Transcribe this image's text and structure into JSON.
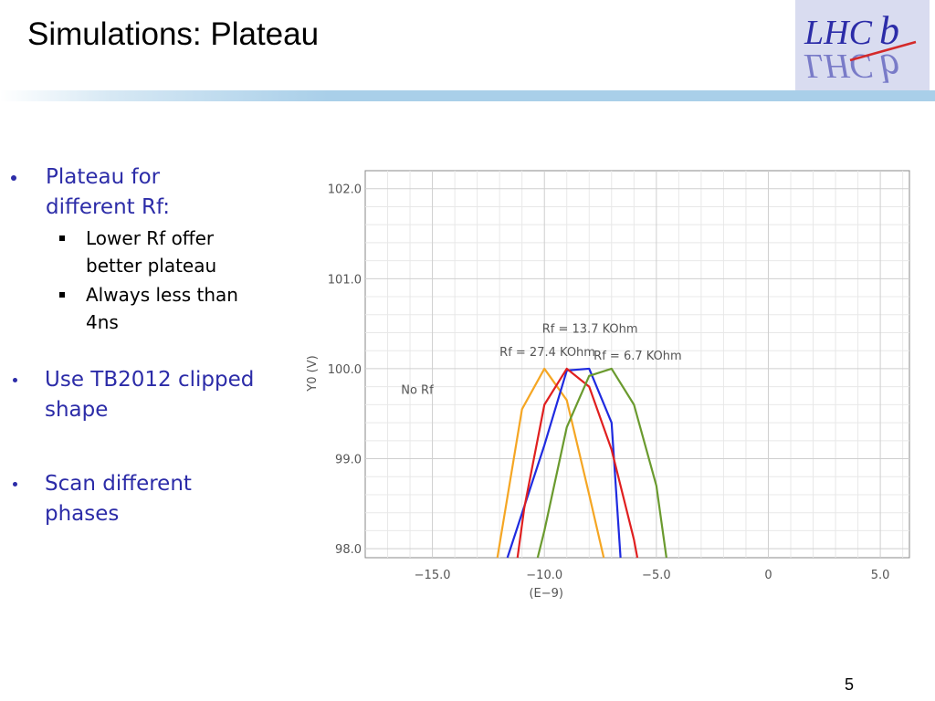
{
  "slide": {
    "title": "Simulations: Plateau",
    "page_number": "5",
    "logo_text": "LHCb"
  },
  "bullets": [
    {
      "lines": [
        "Plateau for",
        "different Rf:"
      ],
      "sub": [
        {
          "lines": [
            "Lower Rf offer",
            "better plateau"
          ]
        },
        {
          "lines": [
            "Always less than",
            "4ns"
          ]
        }
      ]
    },
    {
      "lines": [
        "Use TB2012 clipped",
        "shape"
      ]
    },
    {
      "lines": [
        "Scan different",
        "phases"
      ]
    }
  ],
  "chart_data": {
    "type": "line",
    "ylabel": "Y0 (V)",
    "xlabel": "(E−9)",
    "xlim": [
      -18.0,
      6.3
    ],
    "ylim": [
      97.9,
      102.2
    ],
    "x_ticks": [
      -15.0,
      -10.0,
      -5.0,
      0,
      5.0
    ],
    "x_tick_labels": [
      "−15.0",
      "−10.0",
      "−5.0",
      "0",
      "5.0"
    ],
    "y_ticks": [
      98.0,
      99.0,
      100.0,
      101.0,
      102.0
    ],
    "y_tick_labels": [
      "98.0",
      "99.0",
      "100.0",
      "101.0",
      "102.0"
    ],
    "grid": true,
    "series": [
      {
        "name": "Rf = 27.4 KOhm",
        "color": "#f5a623",
        "x": [
          -12.1,
          -11.0,
          -10.0,
          -9.0,
          -8.0,
          -7.35
        ],
        "y": [
          97.9,
          99.55,
          100.0,
          99.65,
          98.6,
          97.9
        ]
      },
      {
        "name": "",
        "color": "#1f2be0",
        "x": [
          -11.65,
          -10.0,
          -9.0,
          -8.0,
          -7.0,
          -6.6
        ],
        "y": [
          97.9,
          99.15,
          99.98,
          100.0,
          99.4,
          97.9
        ]
      },
      {
        "name": "Rf = 13.7 KOhm",
        "color": "#e01f1f",
        "x": [
          -11.2,
          -10.9,
          -10.0,
          -9.0,
          -8.0,
          -7.0,
          -6.0,
          -5.85
        ],
        "y": [
          97.9,
          98.45,
          99.6,
          100.0,
          99.8,
          99.1,
          98.1,
          97.9
        ]
      },
      {
        "name": "Rf = 6.7 KOhm",
        "color": "#6a9a2e",
        "x": [
          -10.3,
          -10.0,
          -9.0,
          -8.0,
          -7.0,
          -6.0,
          -5.0,
          -4.55
        ],
        "y": [
          97.9,
          98.2,
          99.35,
          99.92,
          100.0,
          99.6,
          98.7,
          97.9
        ]
      }
    ],
    "annotations": [
      {
        "text": "Rf = 13.7 KOhm",
        "x": -10.1,
        "y": 100.4
      },
      {
        "text": "Rf = 27.4 KOhm",
        "x": -12.0,
        "y": 100.14
      },
      {
        "text": "Rf = 6.7 KOhm",
        "x": -7.8,
        "y": 100.1
      },
      {
        "text": "No Rf",
        "x": -16.4,
        "y": 99.72
      }
    ]
  }
}
